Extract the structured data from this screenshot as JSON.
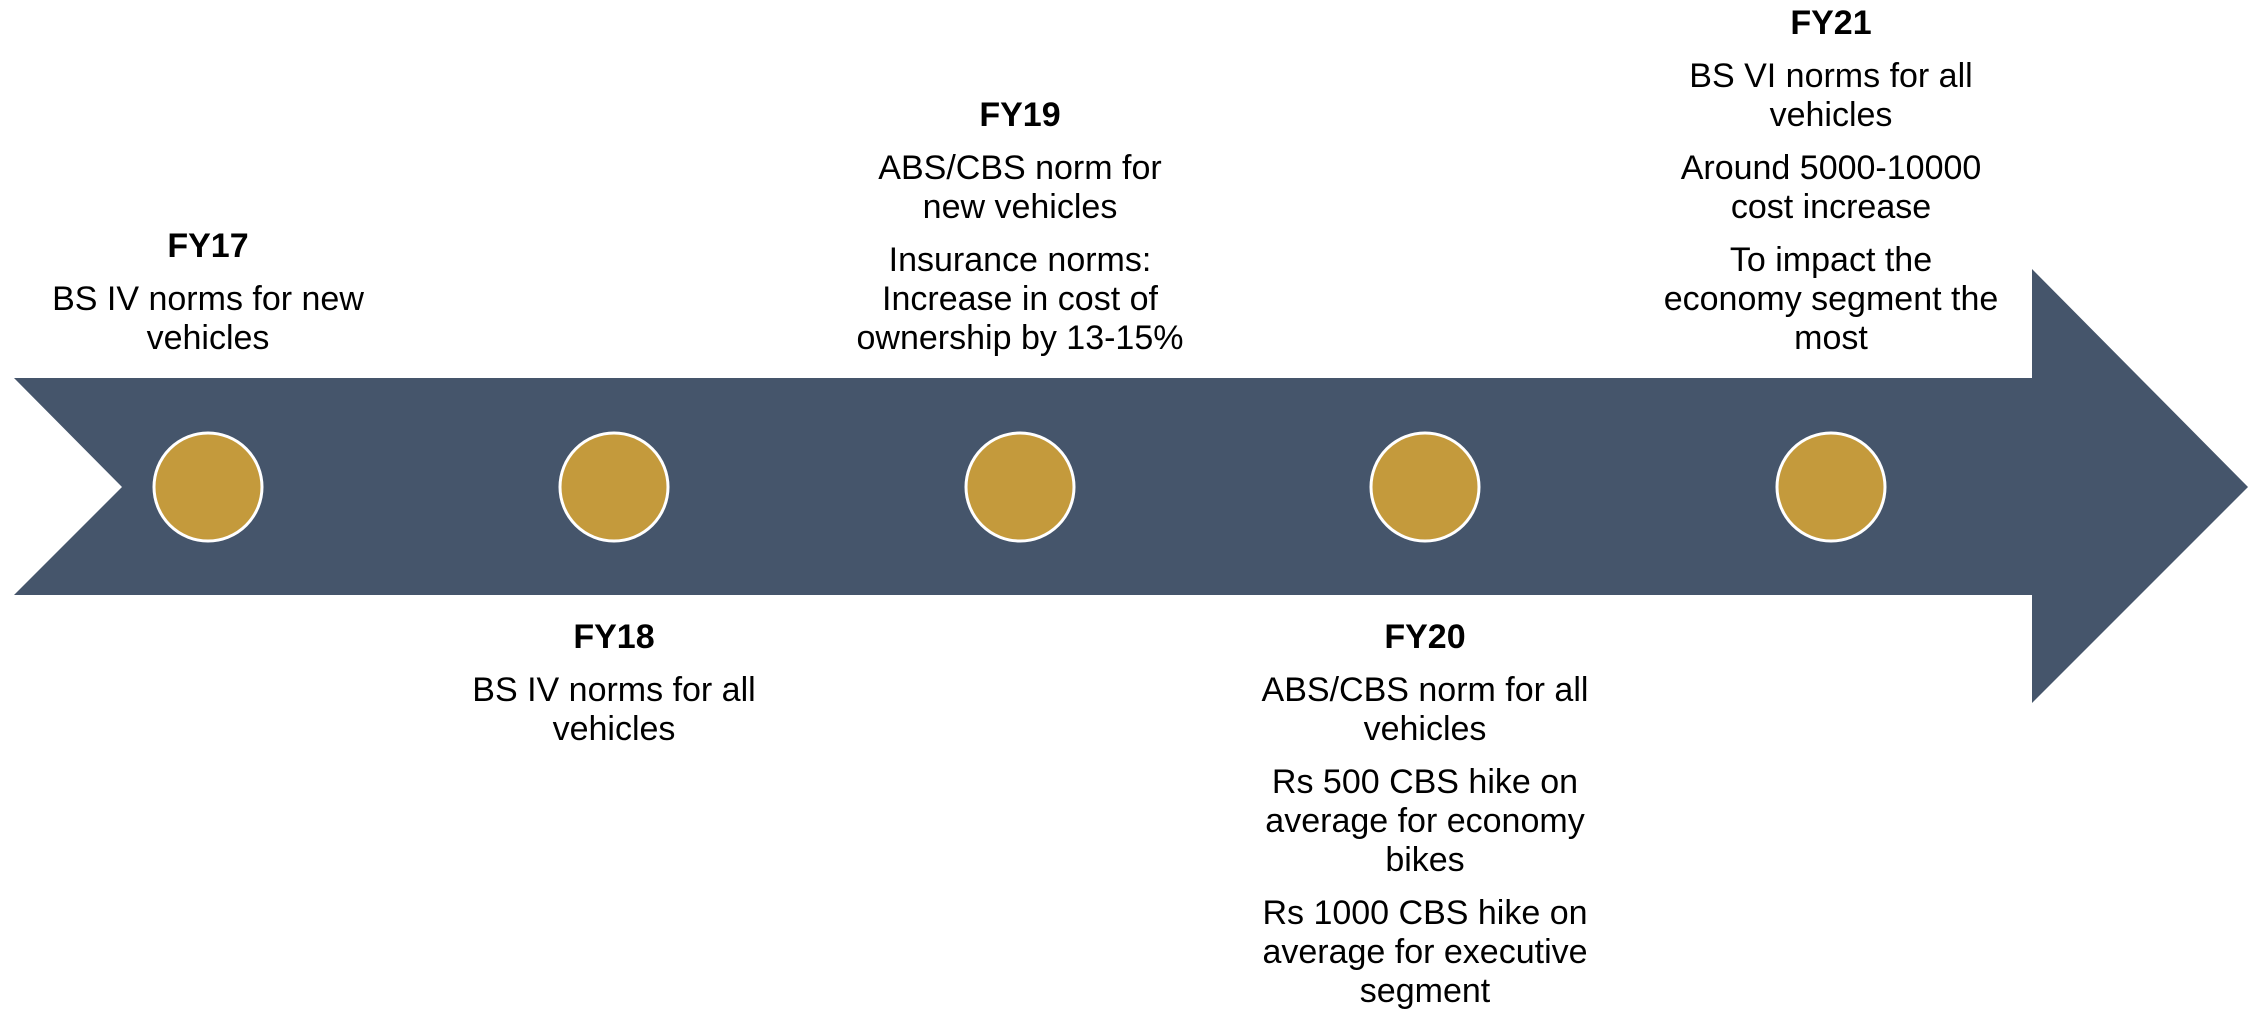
{
  "milestones": [
    {
      "year": "FY17",
      "notes": [
        "BS IV norms for new vehicles"
      ]
    },
    {
      "year": "FY18",
      "notes": [
        "BS IV norms for all vehicles"
      ]
    },
    {
      "year": "FY19",
      "notes": [
        "ABS/CBS norm for new vehicles",
        "Insurance norms: Increase in cost of ownership by 13-15%"
      ]
    },
    {
      "year": "FY20",
      "notes": [
        "ABS/CBS norm for all vehicles",
        "Rs 500 CBS hike on average for economy bikes",
        "Rs 1000 CBS hike on average for executive segment"
      ]
    },
    {
      "year": "FY21",
      "notes": [
        "BS VI norms for all vehicles",
        "Around 5000-10000 cost increase",
        "To impact the economy segment the most"
      ]
    }
  ]
}
